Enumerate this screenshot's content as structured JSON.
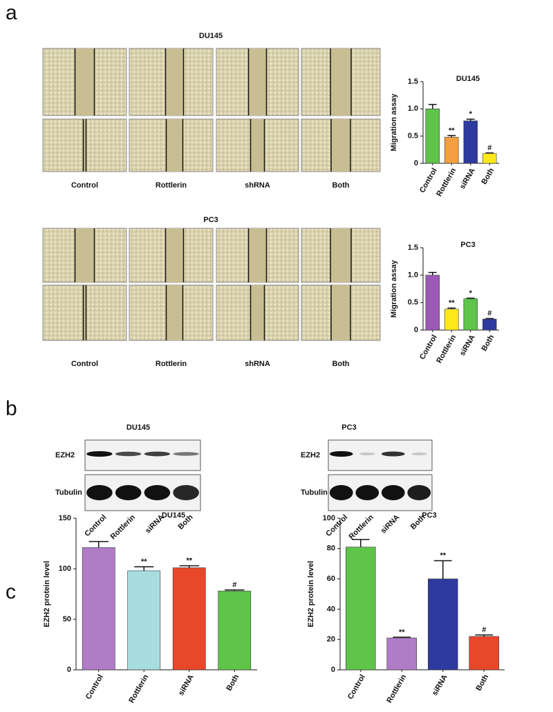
{
  "panel_labels": [
    "a",
    "b",
    "c"
  ],
  "wound_healing": [
    {
      "title": "DU145",
      "labels": [
        "Control",
        "Rottlerin",
        "shRNA",
        "Both"
      ]
    },
    {
      "title": "PC3",
      "labels": [
        "Control",
        "Rottlerin",
        "shRNA",
        "Both"
      ]
    }
  ],
  "western_blot": [
    {
      "title": "DU145",
      "rows": [
        "EZH2",
        "Tubulin"
      ],
      "lanes": [
        "Control",
        "Rottlerin",
        "siRNA",
        "Both"
      ]
    },
    {
      "title": "PC3",
      "rows": [
        "EZH2",
        "Tubulin"
      ],
      "lanes": [
        "Control",
        "Rottlerin",
        "siRNA",
        "Both"
      ]
    }
  ],
  "chart_data": [
    {
      "type": "bar",
      "title": "DU145",
      "y_label": "Migration assay",
      "categories": [
        "Control",
        "Rottlerin",
        "siRNA",
        "Both"
      ],
      "values": [
        1.0,
        0.48,
        0.78,
        0.18
      ],
      "errors": [
        0.08,
        0.03,
        0.03,
        0.01
      ],
      "colors": [
        "#5ec44a",
        "#f5a040",
        "#2e3a9e",
        "#ffe81a"
      ],
      "annotations": [
        {
          "index": 1,
          "text": "**"
        },
        {
          "index": 2,
          "text": "*"
        },
        {
          "index": 3,
          "text": "#"
        }
      ],
      "ylim": [
        0,
        1.5
      ],
      "yticks": [
        0,
        0.5,
        {
          "value": 1,
          "label": "1.0"
        },
        1.5
      ]
    },
    {
      "type": "bar",
      "title": "PC3",
      "y_label": "Migration assay",
      "categories": [
        "Control",
        "Rottlerin",
        "siRNA",
        "Both"
      ],
      "values": [
        1.0,
        0.38,
        0.57,
        0.2
      ],
      "errors": [
        0.05,
        0.02,
        0.01,
        0.01
      ],
      "colors": [
        "#9b59b6",
        "#ffe81a",
        "#5ec44a",
        "#2e3a9e"
      ],
      "annotations": [
        {
          "index": 1,
          "text": "**"
        },
        {
          "index": 2,
          "text": "*"
        },
        {
          "index": 3,
          "text": "#"
        }
      ],
      "ylim": [
        0,
        1.5
      ],
      "yticks": [
        0,
        0.5,
        {
          "value": 1,
          "label": "1.0"
        },
        1.5
      ]
    },
    {
      "type": "bar",
      "title": "DU145",
      "y_label": "EZH2 protein level",
      "categories": [
        "Control",
        "Rottlerin",
        "siRNA",
        "Both"
      ],
      "values": [
        121,
        98,
        101,
        78
      ],
      "errors": [
        6,
        4,
        2,
        1
      ],
      "colors": [
        "#b07cc6",
        "#a8dde0",
        "#e8472a",
        "#5ec44a"
      ],
      "annotations": [
        {
          "index": 1,
          "text": "**"
        },
        {
          "index": 2,
          "text": "**"
        },
        {
          "index": 3,
          "text": "#"
        }
      ],
      "ylim": [
        0,
        150
      ],
      "yticks": [
        0,
        50,
        100,
        150
      ]
    },
    {
      "type": "bar",
      "title": "PC3",
      "y_label": "EZH2 protein level",
      "categories": [
        "Control",
        "Rottlerin",
        "siRNA",
        "Both"
      ],
      "values": [
        81,
        21,
        60,
        22
      ],
      "errors": [
        5,
        0.5,
        12,
        1
      ],
      "colors": [
        "#5ec44a",
        "#b07cc6",
        "#2e3a9e",
        "#e8472a"
      ],
      "annotations": [
        {
          "index": 1,
          "text": "**"
        },
        {
          "index": 2,
          "text": "**"
        },
        {
          "index": 3,
          "text": "#"
        }
      ],
      "ylim": [
        0,
        100
      ],
      "yticks": [
        0,
        20,
        40,
        60,
        80,
        100
      ]
    }
  ]
}
